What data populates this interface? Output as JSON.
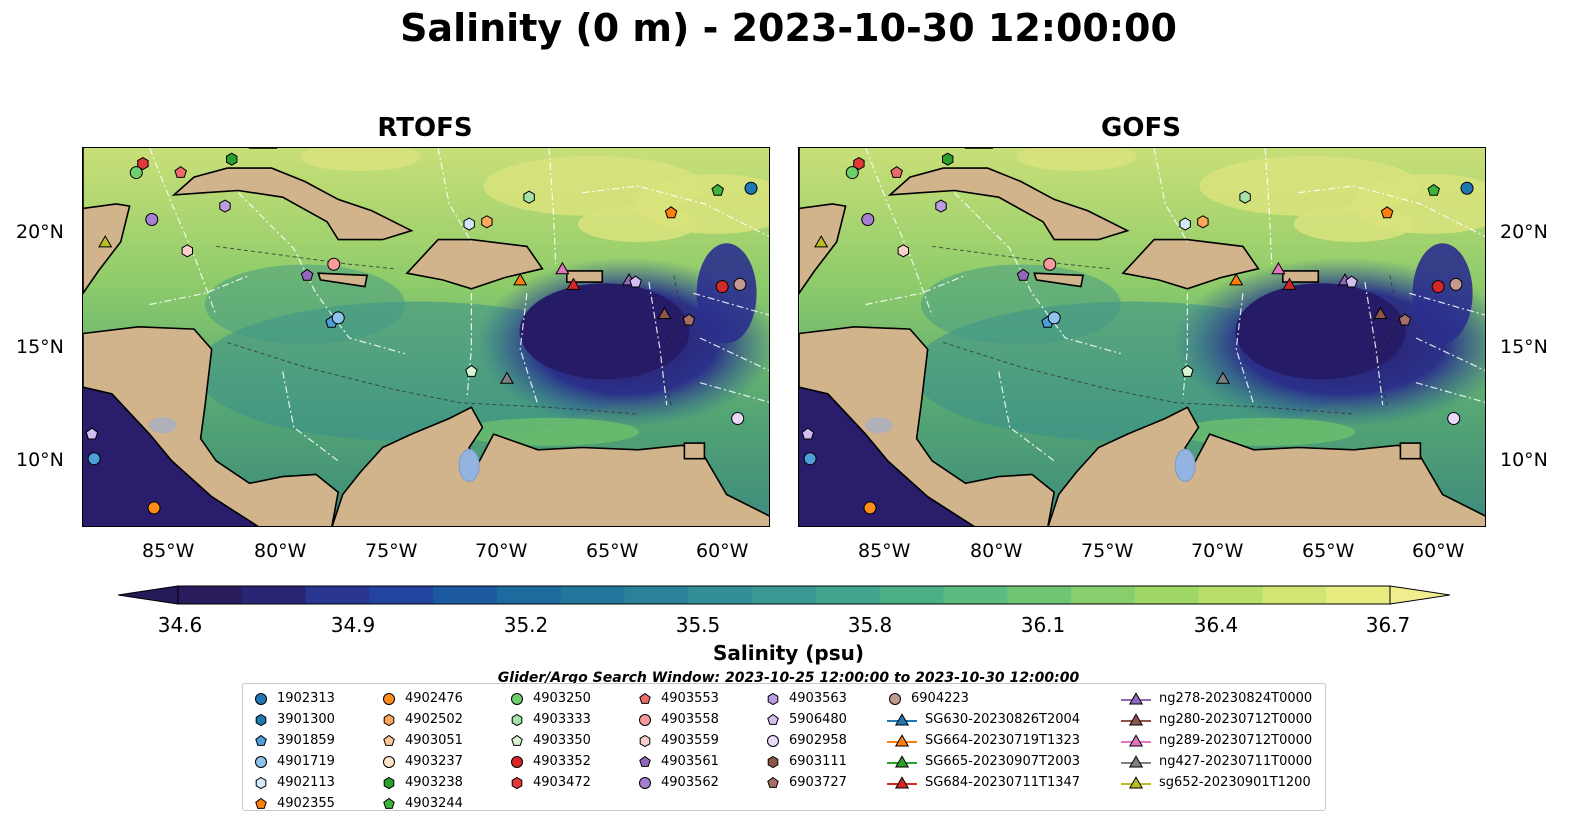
{
  "figure": {
    "title": "Salinity (0 m) - 2023-10-30 12:00:00",
    "search_window": "Glider/Argo Search Window: 2023-10-25 12:00:00 to 2023-10-30 12:00:00"
  },
  "panels": [
    {
      "title": "RTOFS"
    },
    {
      "title": "GOFS"
    }
  ],
  "map_extent": {
    "lon": [
      -89,
      -58
    ],
    "lat": [
      7,
      24
    ]
  },
  "lon_ticks": [
    "85°W",
    "80°W",
    "75°W",
    "70°W",
    "65°W",
    "60°W"
  ],
  "lat_ticks": [
    "20°N",
    "15°N",
    "10°N"
  ],
  "colorbar": {
    "label": "Salinity (psu)",
    "range": [
      34.6,
      36.7
    ],
    "ticks": [
      "34.6",
      "34.9",
      "35.2",
      "35.5",
      "35.8",
      "36.1",
      "36.4",
      "36.7"
    ],
    "colormap": "haline",
    "extend": "both"
  },
  "legend": {
    "columns": [
      [
        {
          "label": "1902313",
          "marker": "circle",
          "color": "#1f77b4"
        },
        {
          "label": "3901300",
          "marker": "hexagon",
          "color": "#1f77b4"
        },
        {
          "label": "3901859",
          "marker": "pentagon",
          "color": "#4c9fd9"
        },
        {
          "label": "4901719",
          "marker": "circle",
          "color": "#8ec4ec"
        },
        {
          "label": "4902113",
          "marker": "hexagon",
          "color": "#d4e9f9"
        },
        {
          "label": "4902355",
          "marker": "pentagon",
          "color": "#ff7f0e"
        }
      ],
      [
        {
          "label": "4902476",
          "marker": "circle",
          "color": "#ff8c1a"
        },
        {
          "label": "4902502",
          "marker": "hexagon",
          "color": "#ffa85c"
        },
        {
          "label": "4903051",
          "marker": "pentagon",
          "color": "#ffc795"
        },
        {
          "label": "4903237",
          "marker": "circle",
          "color": "#ffe3c9"
        },
        {
          "label": "4903238",
          "marker": "hexagon",
          "color": "#2ca02c"
        },
        {
          "label": "4903244",
          "marker": "pentagon",
          "color": "#3cb43c"
        }
      ],
      [
        {
          "label": "4903250",
          "marker": "circle",
          "color": "#6fcf6f"
        },
        {
          "label": "4903333",
          "marker": "hexagon",
          "color": "#a6e3a6"
        },
        {
          "label": "4903350",
          "marker": "pentagon",
          "color": "#d8f5d1"
        },
        {
          "label": "4903352",
          "marker": "circle",
          "color": "#d62728"
        },
        {
          "label": "4903472",
          "marker": "hexagon",
          "color": "#e0393a"
        }
      ],
      [
        {
          "label": "4903553",
          "marker": "pentagon",
          "color": "#ec6a6b"
        },
        {
          "label": "4903558",
          "marker": "circle",
          "color": "#f59b9b"
        },
        {
          "label": "4903559",
          "marker": "hexagon",
          "color": "#fccfcf"
        },
        {
          "label": "4903561",
          "marker": "pentagon",
          "color": "#9467bd"
        },
        {
          "label": "4903562",
          "marker": "circle",
          "color": "#a77ed0"
        }
      ],
      [
        {
          "label": "4903563",
          "marker": "hexagon",
          "color": "#bc9be0"
        },
        {
          "label": "5906480",
          "marker": "pentagon",
          "color": "#d4bdf0"
        },
        {
          "label": "6902958",
          "marker": "circle",
          "color": "#ead9fa"
        },
        {
          "label": "6903111",
          "marker": "hexagon",
          "color": "#8c564b"
        },
        {
          "label": "6903727",
          "marker": "pentagon",
          "color": "#a66f63"
        }
      ],
      [
        {
          "label": "6904223",
          "marker": "circle",
          "color": "#c49a8e"
        },
        {
          "label": "SG630-20230826T2004",
          "marker": "triangle-line",
          "color": "#1f77b4"
        },
        {
          "label": "SG664-20230719T1323",
          "marker": "triangle-line",
          "color": "#ff7f0e"
        },
        {
          "label": "SG665-20230907T2003",
          "marker": "triangle-line",
          "color": "#2ca02c"
        },
        {
          "label": "SG684-20230711T1347",
          "marker": "triangle-line",
          "color": "#d62728"
        }
      ],
      [
        {
          "label": "ng278-20230824T0000",
          "marker": "triangle-line",
          "color": "#9467bd"
        },
        {
          "label": "ng280-20230712T0000",
          "marker": "triangle-line",
          "color": "#8c564b"
        },
        {
          "label": "ng289-20230712T0000",
          "marker": "triangle-line",
          "color": "#e377c2"
        },
        {
          "label": "ng427-20230711T0000",
          "marker": "triangle-line",
          "color": "#7f7f7f"
        },
        {
          "label": "sg652-20230901T1200",
          "marker": "triangle-line",
          "color": "#bcbd22"
        }
      ]
    ]
  },
  "observations": [
    {
      "marker": "hexagon",
      "color": "#e0393a",
      "lon": -86.3,
      "lat": 23.3
    },
    {
      "marker": "circle",
      "color": "#6fcf6f",
      "lon": -86.6,
      "lat": 22.9
    },
    {
      "marker": "pentagon",
      "color": "#ec6a6b",
      "lon": -84.6,
      "lat": 22.9
    },
    {
      "marker": "hexagon",
      "color": "#2ca02c",
      "lon": -82.3,
      "lat": 23.5
    },
    {
      "marker": "circle",
      "color": "#a77ed0",
      "lon": -85.9,
      "lat": 20.8
    },
    {
      "marker": "hexagon",
      "color": "#bc9be0",
      "lon": -82.6,
      "lat": 21.4
    },
    {
      "marker": "triangle",
      "color": "#bcbd22",
      "lon": -88.0,
      "lat": 19.8
    },
    {
      "marker": "hexagon",
      "color": "#fccfcf",
      "lon": -84.3,
      "lat": 19.4
    },
    {
      "marker": "circle",
      "color": "#f59b9b",
      "lon": -77.7,
      "lat": 18.8
    },
    {
      "marker": "pentagon",
      "color": "#9467bd",
      "lon": -78.9,
      "lat": 18.3
    },
    {
      "marker": "pentagon",
      "color": "#4c9fd9",
      "lon": -77.8,
      "lat": 16.2
    },
    {
      "marker": "circle",
      "color": "#8ec4ec",
      "lon": -77.5,
      "lat": 16.4
    },
    {
      "marker": "hexagon",
      "color": "#d4e9f9",
      "lon": -71.6,
      "lat": 20.6
    },
    {
      "marker": "hexagon",
      "color": "#ffa85c",
      "lon": -70.8,
      "lat": 20.7
    },
    {
      "marker": "hexagon",
      "color": "#a6e3a6",
      "lon": -68.9,
      "lat": 21.8
    },
    {
      "marker": "pentagon",
      "color": "#ff7f0e",
      "lon": -62.5,
      "lat": 21.1
    },
    {
      "marker": "pentagon",
      "color": "#3cb43c",
      "lon": -60.4,
      "lat": 22.1
    },
    {
      "marker": "circle",
      "color": "#1f77b4",
      "lon": -58.9,
      "lat": 22.2
    },
    {
      "marker": "triangle",
      "color": "#ff7f0e",
      "lon": -69.3,
      "lat": 18.1
    },
    {
      "marker": "triangle",
      "color": "#e377c2",
      "lon": -67.4,
      "lat": 18.6
    },
    {
      "marker": "triangle",
      "color": "#d62728",
      "lon": -66.9,
      "lat": 17.9
    },
    {
      "marker": "triangle",
      "color": "#9467bd",
      "lon": -64.4,
      "lat": 18.1
    },
    {
      "marker": "pentagon",
      "color": "#d4bdf0",
      "lon": -64.1,
      "lat": 18.0
    },
    {
      "marker": "circle",
      "color": "#d62728",
      "lon": -60.2,
      "lat": 17.8
    },
    {
      "marker": "circle",
      "color": "#c49a8e",
      "lon": -59.4,
      "lat": 17.9
    },
    {
      "marker": "triangle",
      "color": "#8c564b",
      "lon": -62.8,
      "lat": 16.6
    },
    {
      "marker": "pentagon",
      "color": "#a66f63",
      "lon": -61.7,
      "lat": 16.3
    },
    {
      "marker": "triangle",
      "color": "#7f7f7f",
      "lon": -69.9,
      "lat": 13.7
    },
    {
      "marker": "pentagon",
      "color": "#d8f5d1",
      "lon": -71.5,
      "lat": 14.0
    },
    {
      "marker": "circle",
      "color": "#ead9fa",
      "lon": -59.5,
      "lat": 11.9
    },
    {
      "marker": "pentagon",
      "color": "#d4bdf0",
      "lon": -88.6,
      "lat": 11.2
    },
    {
      "marker": "circle",
      "color": "#4c9fd9",
      "lon": -88.5,
      "lat": 10.1
    },
    {
      "marker": "circle",
      "color": "#ff8c1a",
      "lon": -85.8,
      "lat": 7.9
    }
  ]
}
